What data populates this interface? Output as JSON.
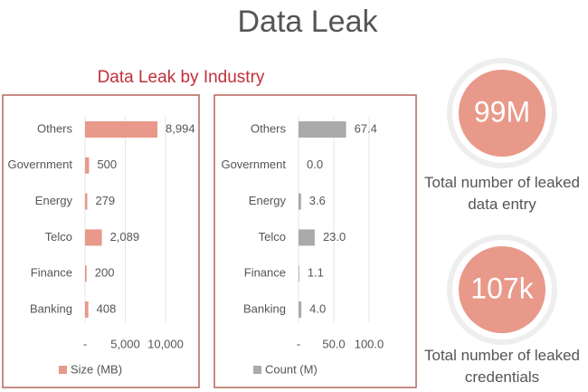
{
  "title": "Data Leak",
  "subtitle": "Data Leak by Industry",
  "kpis": [
    {
      "value": "99M",
      "label": "Total number of leaked data entry"
    },
    {
      "value": "107k",
      "label": "Total number of leaked credentials"
    }
  ],
  "chart_data": [
    {
      "type": "hbar",
      "categories": [
        "Others",
        "Government",
        "Energy",
        "Telco",
        "Finance",
        "Banking"
      ],
      "series": [
        {
          "name": "Size (MB)",
          "color": "#e8998a",
          "values": [
            8994,
            500,
            279,
            2089,
            200,
            408
          ],
          "value_labels": [
            "8,994",
            "500",
            "279",
            "2,089",
            "200",
            "408"
          ]
        }
      ],
      "xlim": [
        0,
        10000
      ],
      "xticks": [
        {
          "value": 0,
          "label": "-"
        },
        {
          "value": 5000,
          "label": "5,000"
        },
        {
          "value": 10000,
          "label": "10,000"
        }
      ],
      "grid": true
    },
    {
      "type": "hbar",
      "categories": [
        "Others",
        "Government",
        "Energy",
        "Telco",
        "Finance",
        "Banking"
      ],
      "series": [
        {
          "name": "Count (M)",
          "color": "#aaaaaa",
          "values": [
            67.4,
            0.0,
            3.6,
            23.0,
            1.1,
            4.0
          ],
          "value_labels": [
            "67.4",
            "0.0",
            "3.6",
            "23.0",
            "1.1",
            "4.0"
          ]
        }
      ],
      "xlim": [
        0,
        100
      ],
      "xticks": [
        {
          "value": 0,
          "label": "-"
        },
        {
          "value": 50,
          "label": "50.0"
        },
        {
          "value": 100,
          "label": "100.0"
        }
      ],
      "grid": true
    }
  ]
}
